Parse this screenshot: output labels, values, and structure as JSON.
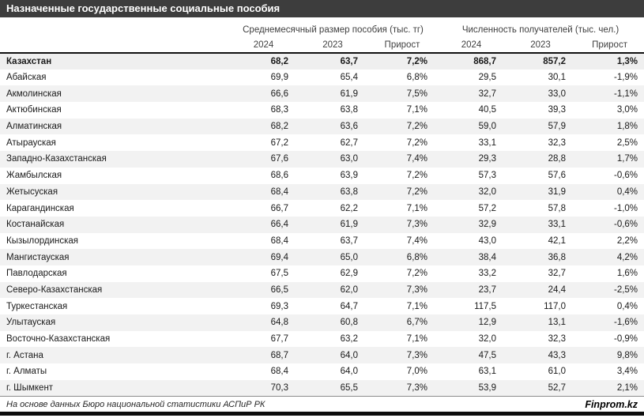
{
  "title": "Назначенные государственные социальные пособия",
  "footer": {
    "source": "На основе данных Бюро национальной статистики АСПиР РК",
    "brand": "Finprom.kz"
  },
  "colors": {
    "title_bar": "#3d3d3d",
    "total_row_bg": "#efefef",
    "stripe_bg": "#f2f2f2",
    "header_border": "#111111",
    "footer_rule": "#8c8c8c"
  },
  "chart_data": {
    "type": "table",
    "title": "Назначенные государственные социальные пособия",
    "column_groups": [
      "Среднемесячный размер пособия (тыс. тг)",
      "Численность получателей (тыс. чел.)"
    ],
    "columns": [
      "2024",
      "2023",
      "Прирост",
      "2024",
      "2023",
      "Прирост"
    ],
    "total": {
      "region": "Казахстан",
      "values": [
        "68,2",
        "63,7",
        "7,2%",
        "868,7",
        "857,2",
        "1,3%"
      ]
    },
    "rows": [
      {
        "region": "Абайская",
        "values": [
          "69,9",
          "65,4",
          "6,8%",
          "29,5",
          "30,1",
          "-1,9%"
        ]
      },
      {
        "region": "Акмолинская",
        "values": [
          "66,6",
          "61,9",
          "7,5%",
          "32,7",
          "33,0",
          "-1,1%"
        ]
      },
      {
        "region": "Актюбинская",
        "values": [
          "68,3",
          "63,8",
          "7,1%",
          "40,5",
          "39,3",
          "3,0%"
        ]
      },
      {
        "region": "Алматинская",
        "values": [
          "68,2",
          "63,6",
          "7,2%",
          "59,0",
          "57,9",
          "1,8%"
        ]
      },
      {
        "region": "Атырауская",
        "values": [
          "67,2",
          "62,7",
          "7,2%",
          "33,1",
          "32,3",
          "2,5%"
        ]
      },
      {
        "region": "Западно-Казахстанская",
        "values": [
          "67,6",
          "63,0",
          "7,4%",
          "29,3",
          "28,8",
          "1,7%"
        ]
      },
      {
        "region": "Жамбылская",
        "values": [
          "68,6",
          "63,9",
          "7,2%",
          "57,3",
          "57,6",
          "-0,6%"
        ]
      },
      {
        "region": "Жетысуская",
        "values": [
          "68,4",
          "63,8",
          "7,2%",
          "32,0",
          "31,9",
          "0,4%"
        ]
      },
      {
        "region": "Карагандинская",
        "values": [
          "66,7",
          "62,2",
          "7,1%",
          "57,2",
          "57,8",
          "-1,0%"
        ]
      },
      {
        "region": "Костанайская",
        "values": [
          "66,4",
          "61,9",
          "7,3%",
          "32,9",
          "33,1",
          "-0,6%"
        ]
      },
      {
        "region": "Кызылординская",
        "values": [
          "68,4",
          "63,7",
          "7,4%",
          "43,0",
          "42,1",
          "2,2%"
        ]
      },
      {
        "region": "Мангистауская",
        "values": [
          "69,4",
          "65,0",
          "6,8%",
          "38,4",
          "36,8",
          "4,2%"
        ]
      },
      {
        "region": "Павлодарская",
        "values": [
          "67,5",
          "62,9",
          "7,2%",
          "33,2",
          "32,7",
          "1,6%"
        ]
      },
      {
        "region": "Северо-Казахстанская",
        "values": [
          "66,5",
          "62,0",
          "7,3%",
          "23,7",
          "24,4",
          "-2,5%"
        ]
      },
      {
        "region": "Туркестанская",
        "values": [
          "69,3",
          "64,7",
          "7,1%",
          "117,5",
          "117,0",
          "0,4%"
        ]
      },
      {
        "region": "Улытауская",
        "values": [
          "64,8",
          "60,8",
          "6,7%",
          "12,9",
          "13,1",
          "-1,6%"
        ]
      },
      {
        "region": "Восточно-Казахстанская",
        "values": [
          "67,7",
          "63,2",
          "7,1%",
          "32,0",
          "32,3",
          "-0,9%"
        ]
      },
      {
        "region": "г. Астана",
        "values": [
          "68,7",
          "64,0",
          "7,3%",
          "47,5",
          "43,3",
          "9,8%"
        ]
      },
      {
        "region": "г. Алматы",
        "values": [
          "68,4",
          "64,0",
          "7,0%",
          "63,1",
          "61,0",
          "3,4%"
        ]
      },
      {
        "region": "г. Шымкент",
        "values": [
          "70,3",
          "65,5",
          "7,3%",
          "53,9",
          "52,7",
          "2,1%"
        ]
      }
    ]
  }
}
